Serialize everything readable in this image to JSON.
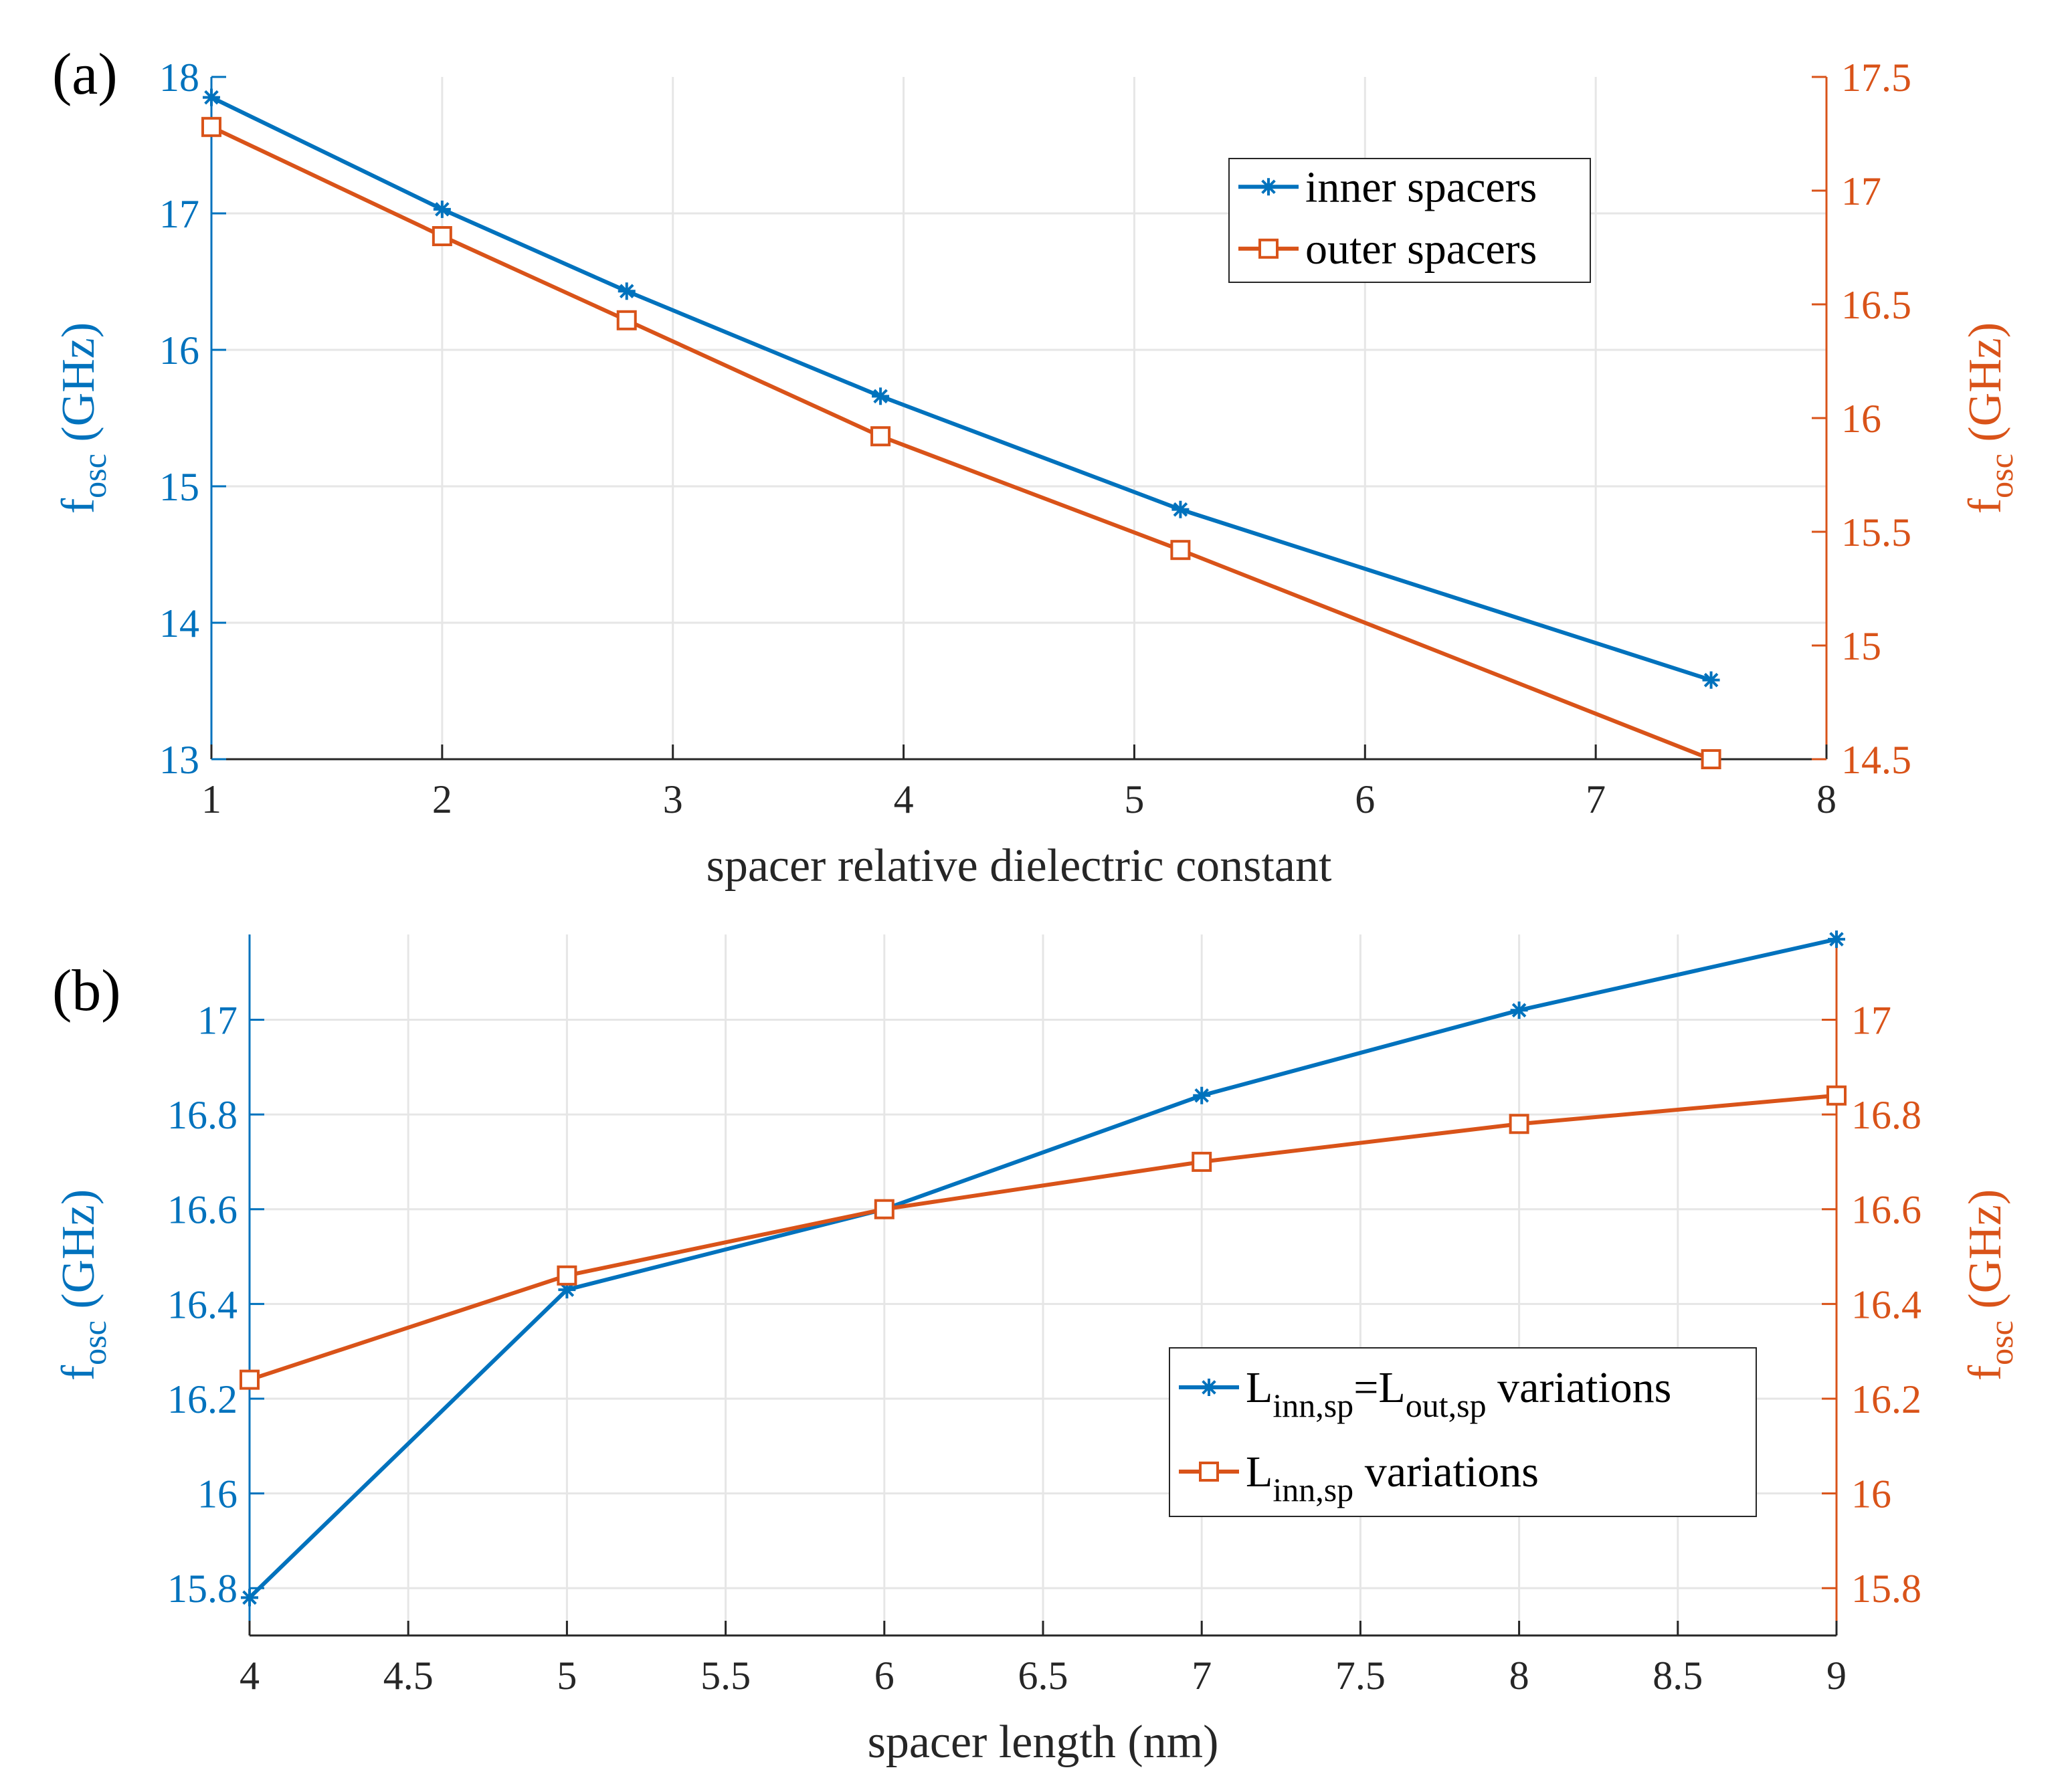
{
  "colors": {
    "left_axis": "#0072BD",
    "right_axis": "#D95319",
    "inner": "#0072BD",
    "outer": "#D95319",
    "grid": "#E6E6E6",
    "axis_black": "#262626"
  },
  "chart_data": [
    {
      "panel_label": "(a)",
      "type": "line",
      "xlabel": "spacer relative dielectric constant",
      "ylabel_left": {
        "main": "f",
        "sub": "osc",
        "unit": " (GHz)"
      },
      "ylabel_right": {
        "main": "f",
        "sub": "osc",
        "unit": " (GHz)"
      },
      "xlim": [
        1,
        8
      ],
      "ylim_left": [
        13,
        18
      ],
      "ylim_right": [
        14.5,
        17.5
      ],
      "xticks": [
        1,
        2,
        3,
        4,
        5,
        6,
        7,
        8
      ],
      "yticks_left": [
        13,
        14,
        15,
        16,
        17,
        18
      ],
      "yticks_right": [
        14.5,
        15,
        15.5,
        16,
        16.5,
        17,
        17.5
      ],
      "grid": true,
      "legend_position": "top-right",
      "series": [
        {
          "name": "inner spacers",
          "legend_parts": [
            {
              "t": "inner spacers",
              "s": "n"
            }
          ],
          "axis": "left",
          "marker": "asterisk",
          "x": [
            1,
            2,
            2.8,
            3.9,
            5.2,
            7.5
          ],
          "y": [
            17.85,
            17.03,
            16.43,
            15.66,
            14.83,
            13.58
          ]
        },
        {
          "name": "outer spacers",
          "legend_parts": [
            {
              "t": "outer spacers",
              "s": "n"
            }
          ],
          "axis": "right",
          "marker": "square",
          "x": [
            1,
            2,
            2.8,
            3.9,
            5.2,
            7.5
          ],
          "y": [
            17.28,
            16.8,
            16.43,
            15.92,
            15.42,
            14.5
          ]
        }
      ]
    },
    {
      "panel_label": "(b)",
      "type": "line",
      "xlabel": "spacer length (nm)",
      "ylabel_left": {
        "main": "f",
        "sub": "osc",
        "unit": " (GHz)"
      },
      "ylabel_right": {
        "main": "f",
        "sub": "osc",
        "unit": " (GHz)"
      },
      "xlim": [
        4,
        9
      ],
      "ylim_left": [
        15.7,
        17.18
      ],
      "ylim_right": [
        15.7,
        17.18
      ],
      "xticks": [
        4,
        4.5,
        5,
        5.5,
        6,
        6.5,
        7,
        7.5,
        8,
        8.5,
        9
      ],
      "yticks_left": [
        15.8,
        16,
        16.2,
        16.4,
        16.6,
        16.8,
        17
      ],
      "yticks_right": [
        15.8,
        16,
        16.2,
        16.4,
        16.6,
        16.8,
        17
      ],
      "grid": true,
      "legend_position": "bottom-right",
      "series": [
        {
          "name": "Linn,sp=Lout,sp variations",
          "legend_parts": [
            {
              "t": "L",
              "s": "n"
            },
            {
              "t": "inn,sp",
              "s": "sub"
            },
            {
              "t": "=L",
              "s": "n"
            },
            {
              "t": "out,sp",
              "s": "sub"
            },
            {
              "t": " variations",
              "s": "n"
            }
          ],
          "axis": "left",
          "marker": "asterisk",
          "x": [
            4,
            5,
            6,
            7,
            8,
            9
          ],
          "y": [
            15.78,
            16.43,
            16.6,
            16.84,
            17.02,
            17.17
          ]
        },
        {
          "name": "Linn,sp variations",
          "legend_parts": [
            {
              "t": "L",
              "s": "n"
            },
            {
              "t": "inn,sp",
              "s": "sub"
            },
            {
              "t": " variations",
              "s": "n"
            }
          ],
          "axis": "right",
          "marker": "square",
          "x": [
            4,
            5,
            6,
            7,
            8,
            9
          ],
          "y": [
            16.24,
            16.46,
            16.6,
            16.7,
            16.78,
            16.84
          ]
        }
      ]
    }
  ]
}
